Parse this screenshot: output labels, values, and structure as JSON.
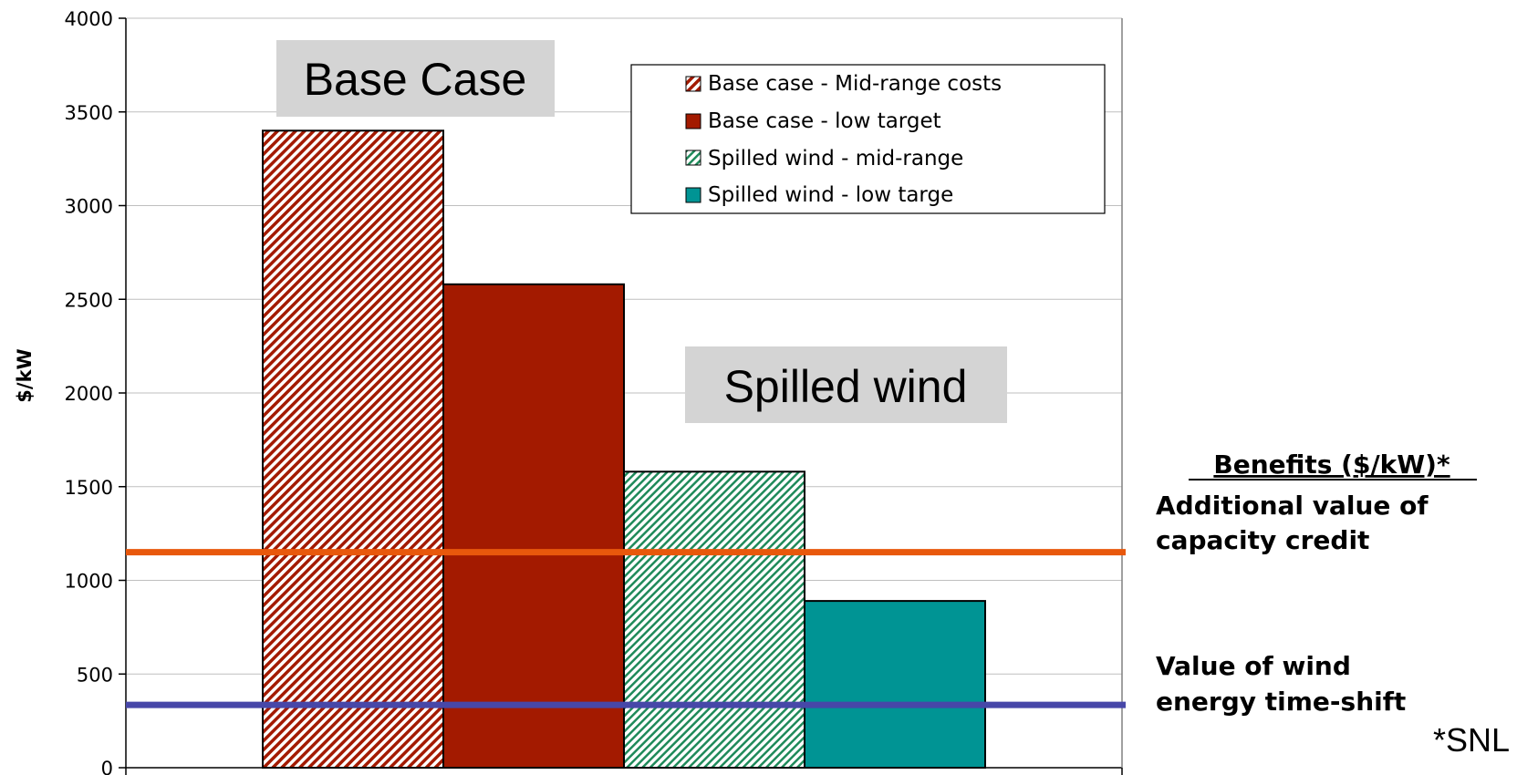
{
  "colors": {
    "base_mid": "#A31A00",
    "base_low": "#A31A00",
    "spilled_mid": "#1F8A5A",
    "spilled_low": "#009494",
    "capacity_line": "#E8580C",
    "timeshift_line": "#4747A8",
    "callout_bg": "#D4D4D4",
    "grid": "#BFBFBF"
  },
  "chart_data": {
    "type": "bar",
    "ylabel": "$/kW",
    "ylim": [
      0,
      4000
    ],
    "yticks": [
      0,
      500,
      1000,
      1500,
      2000,
      2500,
      3000,
      3500,
      4000
    ],
    "grid": true,
    "legend_position": "top-right",
    "series": [
      {
        "name": "Base case - Mid-range costs",
        "value": 3400,
        "pattern": "hatched",
        "color_key": "base_mid"
      },
      {
        "name": "Base case - low target",
        "value": 2580,
        "pattern": "solid",
        "color_key": "base_low"
      },
      {
        "name": "Spilled wind - mid-range",
        "value": 1580,
        "pattern": "hatched",
        "color_key": "spilled_mid"
      },
      {
        "name": "Spilled wind - low targe",
        "value": 890,
        "pattern": "solid",
        "color_key": "spilled_low"
      }
    ],
    "reference_lines": [
      {
        "name": "Additional value of capacity credit",
        "value": 1150,
        "color_key": "capacity_line"
      },
      {
        "name": "Value of wind energy time-shift",
        "value": 335,
        "color_key": "timeshift_line"
      }
    ],
    "annotations": {
      "base_case": "Base Case",
      "spilled_wind": "Spilled wind"
    }
  },
  "side_panel": {
    "heading": "Benefits ($/kW)*",
    "capacity_line1": "Additional value of",
    "capacity_line2": "capacity credit",
    "timeshift_line1": "Value of wind",
    "timeshift_line2": "energy time-shift",
    "source_note": "*SNL"
  }
}
